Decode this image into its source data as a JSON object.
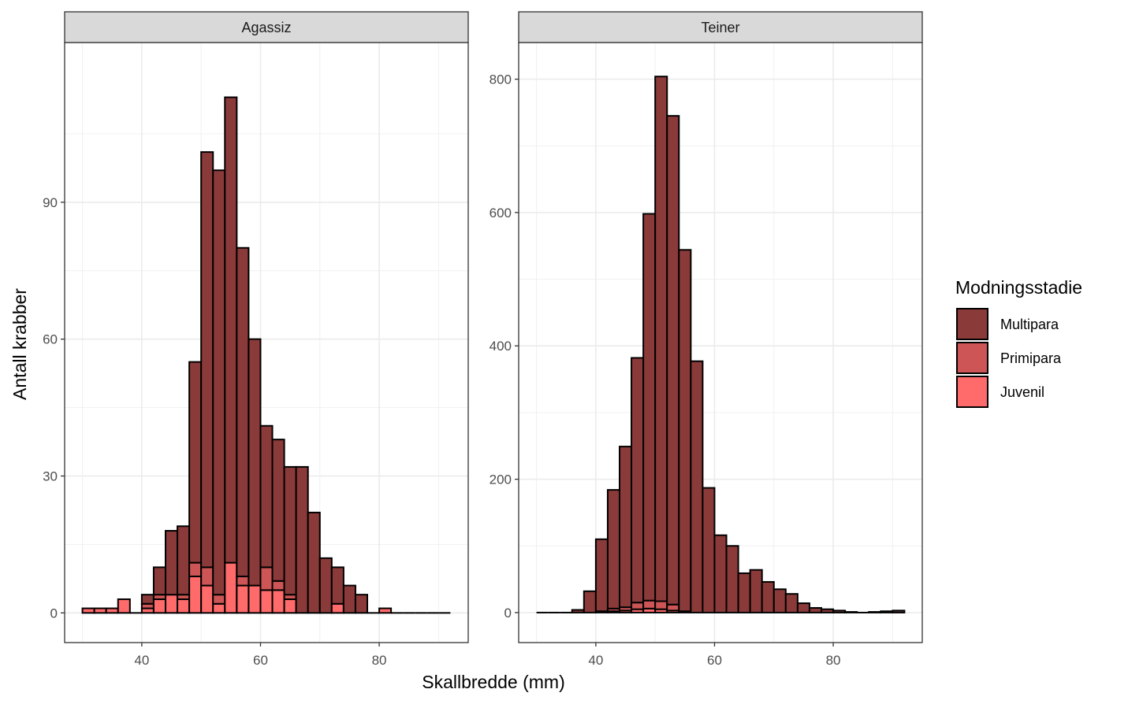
{
  "chart_data": {
    "type": "bar",
    "subtype": "stacked-histogram-faceted",
    "xlabel": "Skallbredde (mm)",
    "ylabel": "Antall krabber",
    "legend": {
      "title": "Modningsstadie",
      "position": "right",
      "entries": [
        {
          "name": "Multipara",
          "color": "#8B3A3A"
        },
        {
          "name": "Primipara",
          "color": "#CD5555"
        },
        {
          "name": "Juvenil",
          "color": "#FF6A6A"
        }
      ]
    },
    "bin_width": 2,
    "xlim": [
      27,
      95
    ],
    "x_breaks": [
      40,
      60,
      80
    ],
    "x_break_labels": [
      "40",
      "60",
      "80"
    ],
    "panels": [
      {
        "strip": "Agassiz",
        "ylim": [
          -6.5,
          125
        ],
        "y_breaks": [
          0,
          30,
          60,
          90
        ],
        "y_break_labels": [
          "0",
          "30",
          "60",
          "90"
        ],
        "bin_centers": [
          31,
          33,
          35,
          37,
          39,
          41,
          43,
          45,
          47,
          49,
          51,
          53,
          55,
          57,
          59,
          61,
          63,
          65,
          67,
          69,
          71,
          73,
          75,
          77,
          79,
          81,
          83,
          85,
          87,
          89,
          91
        ],
        "series": [
          {
            "name": "Juvenil",
            "values": [
              1,
              1,
              1,
              3,
              0,
              1,
              3,
              4,
              3,
              8,
              6,
              2,
              11,
              6,
              6,
              5,
              5,
              3,
              0,
              0,
              0,
              2,
              0,
              0,
              0,
              1,
              0,
              0,
              0,
              0,
              0
            ]
          },
          {
            "name": "Primipara",
            "values": [
              0,
              0,
              0,
              0,
              0,
              1,
              1,
              0,
              1,
              3,
              4,
              2,
              0,
              2,
              0,
              5,
              2,
              1,
              0,
              0,
              0,
              0,
              0,
              0,
              0,
              0,
              0,
              0,
              0,
              0,
              0
            ]
          },
          {
            "name": "Multipara",
            "values": [
              0,
              0,
              0,
              0,
              0,
              2,
              6,
              14,
              15,
              44,
              91,
              93,
              102,
              72,
              54,
              31,
              31,
              28,
              32,
              22,
              12,
              8,
              6,
              4,
              0,
              0,
              0,
              0,
              0,
              0,
              0
            ]
          }
        ],
        "totals": [
          1,
          1,
          1,
          3,
          0,
          4,
          10,
          18,
          19,
          55,
          101,
          97,
          113,
          80,
          60,
          41,
          38,
          32,
          32,
          22,
          12,
          10,
          6,
          4,
          0,
          1,
          0,
          0,
          0,
          0,
          0
        ]
      },
      {
        "strip": "Teiner",
        "ylim": [
          -45,
          855
        ],
        "y_breaks": [
          0,
          200,
          400,
          600,
          800
        ],
        "y_break_labels": [
          "0",
          "200",
          "400",
          "600",
          "800"
        ],
        "bin_centers": [
          31,
          33,
          35,
          37,
          39,
          41,
          43,
          45,
          47,
          49,
          51,
          53,
          55,
          57,
          59,
          61,
          63,
          65,
          67,
          69,
          71,
          73,
          75,
          77,
          79,
          81,
          83,
          85,
          87,
          89,
          91
        ],
        "series": [
          {
            "name": "Juvenil",
            "values": [
              0,
              0,
              0,
              0,
              0,
              0,
              2,
              3,
              5,
              6,
              5,
              3,
              1,
              0,
              0,
              0,
              0,
              0,
              0,
              0,
              0,
              0,
              0,
              0,
              0,
              0,
              0,
              0,
              0,
              0,
              0
            ]
          },
          {
            "name": "Primipara",
            "values": [
              0,
              0,
              0,
              0,
              0,
              2,
              4,
              5,
              10,
              12,
              12,
              9,
              1,
              0,
              0,
              0,
              0,
              0,
              0,
              0,
              0,
              0,
              0,
              0,
              0,
              0,
              0,
              0,
              0,
              0,
              0
            ]
          },
          {
            "name": "Multipara",
            "values": [
              0,
              0,
              0,
              4,
              32,
              108,
              178,
              241,
              367,
              580,
              787,
              733,
              542,
              377,
              187,
              116,
              100,
              59,
              64,
              46,
              35,
              28,
              14,
              7,
              5,
              3,
              1,
              0,
              1,
              2,
              3
            ]
          }
        ],
        "totals": [
          0,
          0,
          0,
          4,
          32,
          110,
          184,
          249,
          382,
          598,
          804,
          745,
          544,
          377,
          187,
          116,
          100,
          59,
          64,
          46,
          35,
          28,
          14,
          7,
          5,
          3,
          1,
          0,
          1,
          2,
          3
        ]
      }
    ]
  }
}
